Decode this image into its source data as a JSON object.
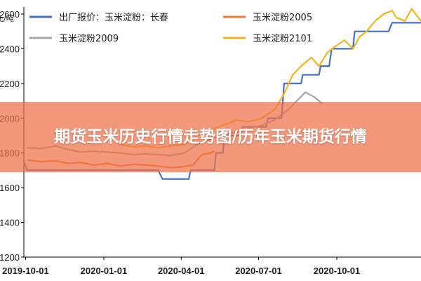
{
  "banner": {
    "title": "期货玉米历史行情走势图/历年玉米期货行情"
  },
  "chart_data": {
    "type": "line",
    "unit_label": "元/吨",
    "y_ticks": [
      "2600",
      "2400",
      "2200",
      "2000",
      "1800",
      "1600",
      "1400",
      "1200"
    ],
    "x_ticks": [
      "2019-10-01",
      "2020-01-01",
      "2020-04-01",
      "2020-07-01",
      "2020-10-01"
    ],
    "xlim": [
      "2019-09-29",
      "2021-01-08"
    ],
    "ylim": [
      1200,
      2600
    ],
    "legend_position": "top",
    "grid": false,
    "series": [
      {
        "name": "出厂报价：玉米淀粉：长春",
        "color": "#4472c4",
        "step": true,
        "points": [
          [
            "2019-09-29",
            1750
          ],
          [
            "2019-10-03",
            1700
          ],
          [
            "2019-11-10",
            1700
          ],
          [
            "2019-12-10",
            1700
          ],
          [
            "2020-01-15",
            1700
          ],
          [
            "2020-02-10",
            1700
          ],
          [
            "2020-03-05",
            1700
          ],
          [
            "2020-03-10",
            1650
          ],
          [
            "2020-04-10",
            1650
          ],
          [
            "2020-04-12",
            1700
          ],
          [
            "2020-05-10",
            1700
          ],
          [
            "2020-05-12",
            1800
          ],
          [
            "2020-05-20",
            1800
          ],
          [
            "2020-05-22",
            1900
          ],
          [
            "2020-06-10",
            1900
          ],
          [
            "2020-06-12",
            1950
          ],
          [
            "2020-07-10",
            1950
          ],
          [
            "2020-07-12",
            2000
          ],
          [
            "2020-07-28",
            2000
          ],
          [
            "2020-07-31",
            2200
          ],
          [
            "2020-08-20",
            2200
          ],
          [
            "2020-08-22",
            2250
          ],
          [
            "2020-09-10",
            2250
          ],
          [
            "2020-09-12",
            2300
          ],
          [
            "2020-09-22",
            2300
          ],
          [
            "2020-09-25",
            2400
          ],
          [
            "2020-10-20",
            2400
          ],
          [
            "2020-10-22",
            2500
          ],
          [
            "2020-12-01",
            2500
          ],
          [
            "2020-12-05",
            2550
          ],
          [
            "2021-01-08",
            2550
          ]
        ]
      },
      {
        "name": "玉米淀粉2005",
        "color": "#ed7d31",
        "step": false,
        "points": [
          [
            "2019-10-03",
            1760
          ],
          [
            "2019-10-20",
            1750
          ],
          [
            "2019-11-05",
            1755
          ],
          [
            "2019-11-20",
            1740
          ],
          [
            "2019-12-05",
            1745
          ],
          [
            "2019-12-20",
            1730
          ],
          [
            "2020-01-05",
            1740
          ],
          [
            "2020-01-20",
            1725
          ],
          [
            "2020-02-05",
            1735
          ],
          [
            "2020-02-20",
            1730
          ],
          [
            "2020-03-05",
            1725
          ],
          [
            "2020-03-20",
            1715
          ],
          [
            "2020-04-01",
            1720
          ],
          [
            "2020-04-15",
            1730
          ],
          [
            "2020-04-25",
            1790
          ],
          [
            "2020-05-05",
            1800
          ],
          [
            "2020-05-10",
            1810
          ]
        ]
      },
      {
        "name": "玉米淀粉2009",
        "color": "#a5a5a5",
        "step": false,
        "points": [
          [
            "2019-10-03",
            1830
          ],
          [
            "2019-10-20",
            1825
          ],
          [
            "2019-11-05",
            1840
          ],
          [
            "2019-11-20",
            1820
          ],
          [
            "2019-12-05",
            1805
          ],
          [
            "2019-12-20",
            1810
          ],
          [
            "2020-01-05",
            1805
          ],
          [
            "2020-01-20",
            1800
          ],
          [
            "2020-02-05",
            1790
          ],
          [
            "2020-02-20",
            1795
          ],
          [
            "2020-03-05",
            1790
          ],
          [
            "2020-03-20",
            1785
          ],
          [
            "2020-04-05",
            1800
          ],
          [
            "2020-04-20",
            1850
          ],
          [
            "2020-05-05",
            1880
          ],
          [
            "2020-05-20",
            1900
          ],
          [
            "2020-06-05",
            1920
          ],
          [
            "2020-06-20",
            1940
          ],
          [
            "2020-07-05",
            1960
          ],
          [
            "2020-07-20",
            1990
          ],
          [
            "2020-08-05",
            2050
          ],
          [
            "2020-08-15",
            2100
          ],
          [
            "2020-08-25",
            2150
          ],
          [
            "2020-09-05",
            2120
          ],
          [
            "2020-09-15",
            2080
          ]
        ]
      },
      {
        "name": "玉米淀粉2101",
        "color": "#f2b41e",
        "step": false,
        "points": [
          [
            "2020-01-20",
            1850
          ],
          [
            "2020-02-05",
            1835
          ],
          [
            "2020-02-20",
            1840
          ],
          [
            "2020-03-05",
            1830
          ],
          [
            "2020-03-20",
            1840
          ],
          [
            "2020-04-05",
            1850
          ],
          [
            "2020-04-20",
            1900
          ],
          [
            "2020-05-05",
            1930
          ],
          [
            "2020-05-20",
            1960
          ],
          [
            "2020-06-05",
            1990
          ],
          [
            "2020-06-20",
            1980
          ],
          [
            "2020-07-05",
            2000
          ],
          [
            "2020-07-20",
            2050
          ],
          [
            "2020-08-01",
            2150
          ],
          [
            "2020-08-10",
            2250
          ],
          [
            "2020-08-20",
            2300
          ],
          [
            "2020-09-01",
            2350
          ],
          [
            "2020-09-10",
            2300
          ],
          [
            "2020-09-20",
            2380
          ],
          [
            "2020-10-01",
            2420
          ],
          [
            "2020-10-10",
            2450
          ],
          [
            "2020-10-20",
            2400
          ],
          [
            "2020-10-28",
            2470
          ],
          [
            "2020-11-05",
            2500
          ],
          [
            "2020-11-15",
            2560
          ],
          [
            "2020-11-25",
            2600
          ],
          [
            "2020-12-05",
            2620
          ],
          [
            "2020-12-10",
            2580
          ],
          [
            "2020-12-20",
            2560
          ],
          [
            "2020-12-28",
            2630
          ],
          [
            "2021-01-08",
            2560
          ]
        ]
      }
    ]
  }
}
